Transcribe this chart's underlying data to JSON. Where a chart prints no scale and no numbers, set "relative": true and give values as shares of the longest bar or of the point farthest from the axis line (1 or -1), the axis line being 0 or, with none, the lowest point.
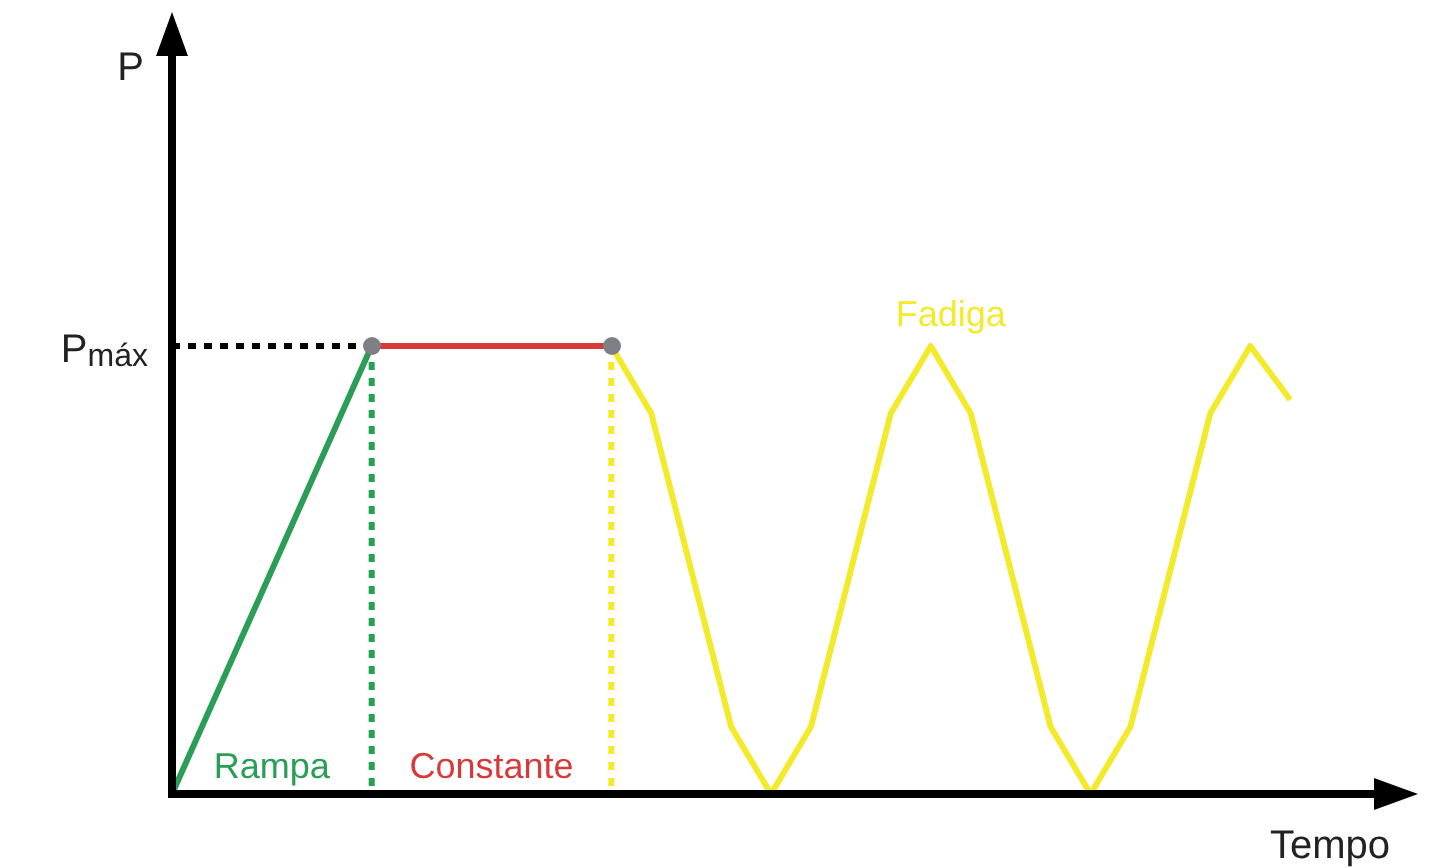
{
  "chart_data": {
    "type": "line",
    "relative": true,
    "xlabel": "Tempo",
    "marker": "none",
    "line_style": "solid",
    "categories": [
      null,
      null,
      null,
      null,
      null,
      null,
      null,
      null,
      null,
      null,
      null,
      null,
      null,
      null,
      null,
      null,
      null,
      null,
      null,
      null,
      null,
      null,
      null,
      null,
      null,
      null,
      null,
      null,
      null,
      null,
      null,
      null
    ],
    "series": [
      {
        "color": "#2a9d56",
        "values": [
          0,
          0.2,
          0.4,
          0.6,
          0.8,
          1,
          null,
          null,
          null,
          null,
          null,
          null,
          null,
          null,
          null,
          null,
          null,
          null,
          null,
          null,
          null,
          null,
          null,
          null,
          null,
          null,
          null,
          null,
          null,
          null,
          null,
          null
        ]
      },
      {
        "color": "#d83a3a",
        "values": [
          null,
          null,
          null,
          null,
          null,
          1,
          1,
          1,
          1,
          1,
          1,
          1,
          null,
          null,
          null,
          null,
          null,
          null,
          null,
          null,
          null,
          null,
          null,
          null,
          null,
          null,
          null,
          null,
          null,
          null,
          null,
          null
        ]
      },
      {
        "color": "#f2ea2a",
        "values": [
          null,
          null,
          null,
          null,
          null,
          null,
          null,
          null,
          null,
          null,
          null,
          1,
          0.85,
          0.5,
          0.15,
          0,
          0.15,
          0.5,
          0.85,
          1,
          0.85,
          0.5,
          0.15,
          0,
          0.15,
          0.5,
          0.85,
          1,
          0.88,
          null,
          null,
          null
        ]
      }
    ],
    "annotations": [
      "Rampa",
      "Constante",
      "Fadiga",
      "P",
      "P$_{máx}$"
    ]
  }
}
